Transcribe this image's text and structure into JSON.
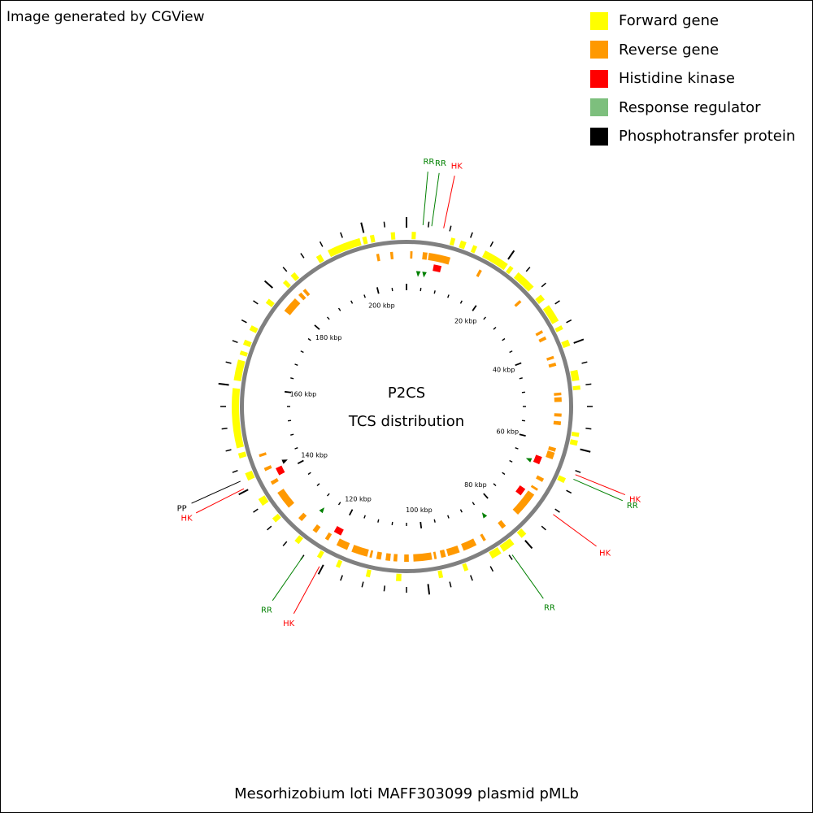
{
  "credit": "Image generated by CGView",
  "legend": [
    {
      "label": "Forward gene",
      "color": "#ffff00"
    },
    {
      "label": "Reverse gene",
      "color": "#ff9900"
    },
    {
      "label": "Histidine kinase",
      "color": "#ff0000"
    },
    {
      "label": "Response regulator",
      "color": "#7dbf7d"
    },
    {
      "label": "Phosphotransfer protein",
      "color": "#000000"
    }
  ],
  "map": {
    "title_line1": "P2CS",
    "title_line2": "TCS distribution",
    "footer": "Mesorhizobium loti MAFF303099 plasmid pMLb",
    "sequence_length_kbp": 208,
    "kbp_labels": [
      "20 kbp",
      "40 kbp",
      "60 kbp",
      "80 kbp",
      "100 kbp",
      "120 kbp",
      "140 kbp",
      "160 kbp",
      "180 kbp",
      "200 kbp"
    ],
    "kbp_label_positions": [
      20,
      40,
      60,
      80,
      100,
      120,
      140,
      160,
      180,
      200
    ],
    "colors": {
      "forward": "#ffff00",
      "reverse": "#ff9900",
      "hk": "#ff0000",
      "rr": "#008000",
      "pp": "#000000",
      "backbone": "#808080"
    },
    "callouts": [
      {
        "label": "RR",
        "type": "rr",
        "pos_kbp": 3.0
      },
      {
        "label": "RR",
        "type": "rr",
        "pos_kbp": 4.6
      },
      {
        "label": "HK",
        "type": "hk",
        "pos_kbp": 6.8
      },
      {
        "label": "HK",
        "type": "hk",
        "pos_kbp": 64.7
      },
      {
        "label": "RR",
        "type": "rr",
        "pos_kbp": 65.6
      },
      {
        "label": "HK",
        "type": "hk",
        "pos_kbp": 73.0
      },
      {
        "label": "RR",
        "type": "rr",
        "pos_kbp": 83.5
      },
      {
        "label": "HK",
        "type": "hk",
        "pos_kbp": 140.5
      },
      {
        "label": "PP",
        "type": "pp",
        "pos_kbp": 142.0
      },
      {
        "label": "RR",
        "type": "rr",
        "pos_kbp": 124.0
      },
      {
        "label": "HK",
        "type": "hk",
        "pos_kbp": 120.5
      }
    ],
    "forward_genes": [
      [
        1,
        1.8
      ],
      [
        8.6,
        9.4
      ],
      [
        10.5,
        11.6
      ],
      [
        13,
        13.8
      ],
      [
        15.5,
        20.5
      ],
      [
        21,
        21.8
      ],
      [
        23,
        27
      ],
      [
        29,
        30.2
      ],
      [
        31.5,
        35
      ],
      [
        36,
        36.8
      ],
      [
        39,
        40.2
      ],
      [
        45,
        47
      ],
      [
        48,
        48.8
      ],
      [
        57,
        57.8
      ],
      [
        58.5,
        59.5
      ],
      [
        66,
        67
      ],
      [
        79,
        80.2
      ],
      [
        82,
        84.5
      ],
      [
        85,
        87
      ],
      [
        92,
        92.8
      ],
      [
        97,
        97.8
      ],
      [
        105,
        106
      ],
      [
        111,
        111.8
      ],
      [
        117,
        117.8
      ],
      [
        121,
        121.8
      ],
      [
        126,
        127
      ],
      [
        132,
        133
      ],
      [
        136,
        137.5
      ],
      [
        141.5,
        143
      ],
      [
        146,
        147
      ],
      [
        148,
        159.5
      ],
      [
        161,
        165
      ],
      [
        166,
        166.8
      ],
      [
        168,
        169
      ],
      [
        171,
        172
      ],
      [
        177,
        178
      ],
      [
        182,
        182.8
      ],
      [
        184,
        185
      ],
      [
        190,
        191
      ],
      [
        192.5,
        199
      ],
      [
        199.5,
        200.3
      ],
      [
        201,
        201.8
      ],
      [
        205,
        205.8
      ]
    ],
    "reverse_genes": [
      [
        0.8,
        1.3
      ],
      [
        3.5,
        4.5
      ],
      [
        4.8,
        9.5
      ],
      [
        16.2,
        16.8
      ],
      [
        27,
        27.6
      ],
      [
        35,
        35.6
      ],
      [
        36.5,
        37.2
      ],
      [
        41,
        41.6
      ],
      [
        42.5,
        43.2
      ],
      [
        49,
        49.6
      ],
      [
        50,
        51
      ],
      [
        53.5,
        54.2
      ],
      [
        55.2,
        56
      ],
      [
        61,
        61.8
      ],
      [
        62,
        63.5
      ],
      [
        68,
        68.8
      ],
      [
        70.5,
        71
      ],
      [
        72,
        77.5
      ],
      [
        81,
        82
      ],
      [
        86.2,
        86.8
      ],
      [
        88.5,
        91.5
      ],
      [
        92.4,
        95
      ],
      [
        95.5,
        96.5
      ],
      [
        97.5,
        98
      ],
      [
        98.5,
        102.5
      ],
      [
        103.5,
        104.5
      ],
      [
        106,
        106.8
      ],
      [
        107.5,
        108.5
      ],
      [
        109.5,
        110.5
      ],
      [
        111.5,
        112
      ],
      [
        112.5,
        116
      ],
      [
        117,
        119.5
      ],
      [
        121.5,
        122.3
      ],
      [
        124.5,
        125.5
      ],
      [
        128.5,
        129.5
      ],
      [
        132.5,
        136.5
      ],
      [
        138.5,
        139.3
      ],
      [
        141.8,
        142.5
      ],
      [
        145,
        145.6
      ],
      [
        178,
        181.5
      ],
      [
        182.5,
        183.3
      ],
      [
        183.8,
        184.5
      ],
      [
        201.5,
        202.1
      ],
      [
        204.5,
        205.1
      ]
    ],
    "hk_marks": [
      7.2,
      64.7,
      73.0,
      120.5,
      140.5
    ],
    "rr_marks": [
      2.9,
      4.4,
      65.5,
      83.5,
      126.6
    ],
    "pp_marks": [
      142.1
    ]
  }
}
